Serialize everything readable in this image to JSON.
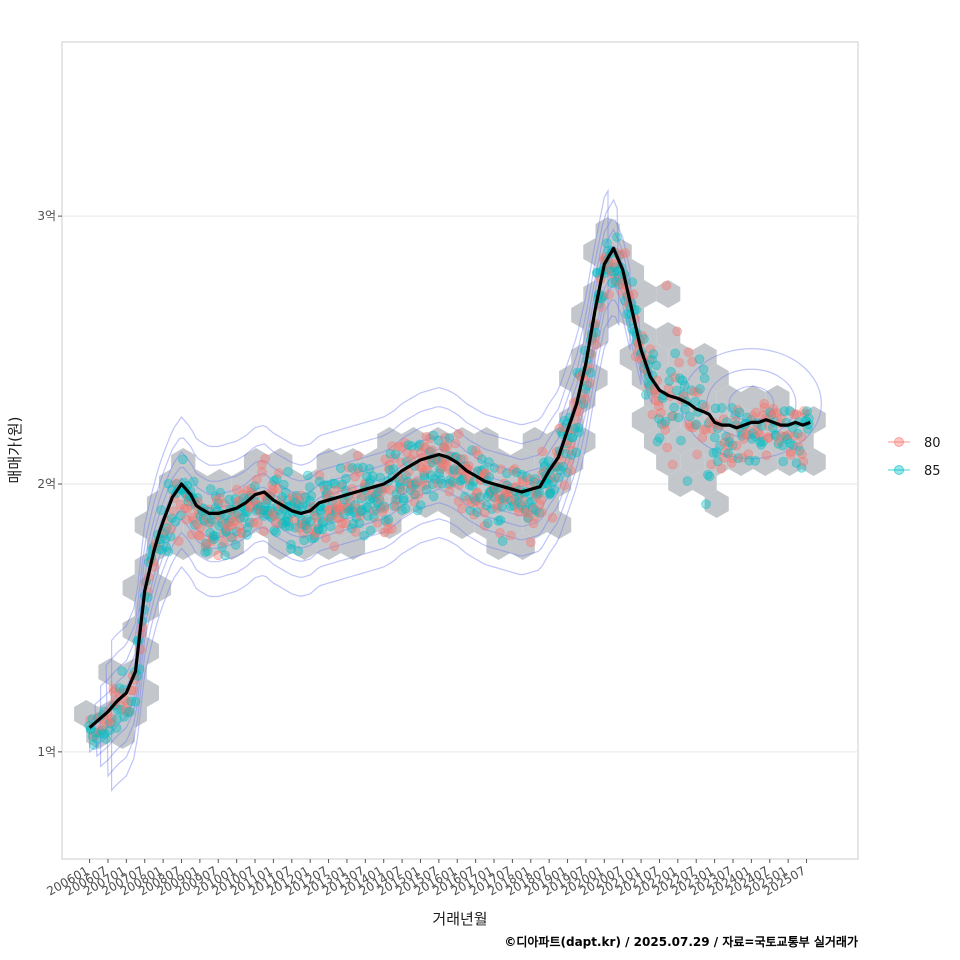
{
  "chart_data": {
    "type": "scatter",
    "xlabel": "거래년월",
    "ylabel": "매매가(원)",
    "x_tick_labels": [
      "200601",
      "200607",
      "200701",
      "200707",
      "200801",
      "200807",
      "200901",
      "200907",
      "201001",
      "201007",
      "201101",
      "201107",
      "201201",
      "201207",
      "201301",
      "201307",
      "201401",
      "201407",
      "201501",
      "201507",
      "201601",
      "201607",
      "201701",
      "201707",
      "201801",
      "201807",
      "201901",
      "201907",
      "202001",
      "202007",
      "202101",
      "202107",
      "202201",
      "202207",
      "202301",
      "202307",
      "202401",
      "202407",
      "202501",
      "202507"
    ],
    "y_ticks": [
      {
        "value": 1,
        "label": "1억"
      },
      {
        "value": 2,
        "label": "2억"
      },
      {
        "value": 3,
        "label": "3억"
      }
    ],
    "y_unit": "억원",
    "xlim_years": [
      2005.25,
      2026.9
    ],
    "ylim": [
      0.6,
      3.65
    ],
    "legend": [
      {
        "name": "80",
        "color": "#F8766D"
      },
      {
        "name": "85",
        "color": "#00BFC4"
      }
    ],
    "trend_line": {
      "name": "smoothed price",
      "x": [
        2006.0,
        2006.25,
        2006.5,
        2006.75,
        2007.0,
        2007.25,
        2007.5,
        2007.75,
        2007.9,
        2008.0,
        2008.25,
        2008.5,
        2008.75,
        2008.9,
        2009.0,
        2009.25,
        2009.5,
        2009.75,
        2010.0,
        2010.25,
        2010.5,
        2010.75,
        2011.0,
        2011.25,
        2011.5,
        2011.75,
        2012.0,
        2012.25,
        2012.5,
        2012.75,
        2013.0,
        2013.25,
        2013.5,
        2013.75,
        2014.0,
        2014.25,
        2014.5,
        2014.75,
        2015.0,
        2015.25,
        2015.5,
        2015.75,
        2016.0,
        2016.25,
        2016.5,
        2016.75,
        2017.0,
        2017.25,
        2017.5,
        2017.75,
        2018.0,
        2018.25,
        2018.5,
        2018.75,
        2019.0,
        2019.25,
        2019.5,
        2019.75,
        2020.0,
        2020.25,
        2020.5,
        2020.75,
        2021.0,
        2021.25,
        2021.5,
        2021.75,
        2022.0,
        2022.15,
        2022.3,
        2022.5,
        2022.7,
        2022.85,
        2023.0,
        2023.2,
        2023.4,
        2023.6,
        2023.8,
        2024.0,
        2024.2,
        2024.4,
        2024.6,
        2024.8,
        2025.0,
        2025.2,
        2025.4,
        2025.6
      ],
      "y": [
        1.09,
        1.12,
        1.15,
        1.19,
        1.22,
        1.3,
        1.6,
        1.75,
        1.82,
        1.86,
        1.95,
        2.0,
        1.96,
        1.92,
        1.91,
        1.89,
        1.89,
        1.9,
        1.91,
        1.93,
        1.96,
        1.97,
        1.94,
        1.92,
        1.9,
        1.89,
        1.9,
        1.93,
        1.94,
        1.95,
        1.96,
        1.97,
        1.98,
        1.99,
        2.0,
        2.02,
        2.05,
        2.07,
        2.09,
        2.1,
        2.11,
        2.1,
        2.08,
        2.05,
        2.03,
        2.01,
        2.0,
        1.99,
        1.98,
        1.97,
        1.98,
        1.99,
        2.05,
        2.1,
        2.2,
        2.3,
        2.45,
        2.65,
        2.82,
        2.88,
        2.8,
        2.65,
        2.5,
        2.4,
        2.35,
        2.33,
        2.32,
        2.31,
        2.3,
        2.28,
        2.27,
        2.26,
        2.23,
        2.22,
        2.22,
        2.21,
        2.22,
        2.23,
        2.23,
        2.24,
        2.23,
        2.22,
        2.22,
        2.23,
        2.22,
        2.23
      ]
    },
    "scatter_summary": {
      "hex_bins": "grey hexagonal density bins behind points",
      "contours": "blue 2-D density contour lines"
    }
  },
  "caption": "©디아파트(dapt.kr) / 2025.07.29 / 자료=국토교통부 실거래가"
}
